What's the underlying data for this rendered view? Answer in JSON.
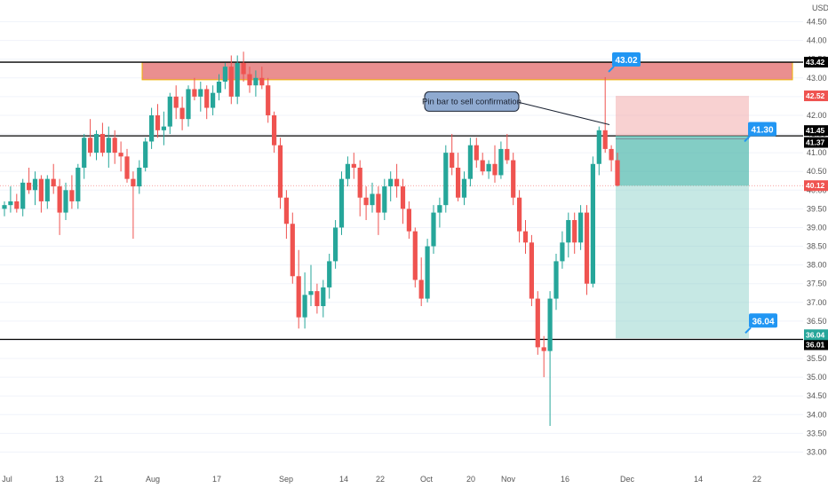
{
  "chart_data": {
    "type": "candlestick",
    "currency": "USD",
    "yaxis_ticks": [
      44.5,
      44.0,
      43.5,
      43.0,
      42.5,
      42.0,
      41.5,
      41.0,
      40.5,
      40.0,
      39.5,
      39.0,
      38.5,
      38.0,
      37.5,
      37.0,
      36.5,
      36.0,
      35.5,
      35.0,
      34.5,
      34.0,
      33.5,
      33.0
    ],
    "ylim": [
      32.7,
      44.9
    ],
    "xaxis_ticks": [
      "Jul",
      "13",
      "21",
      "Aug",
      "17",
      "Sep",
      "14",
      "22",
      "Oct",
      "20",
      "Nov",
      "16",
      "Dec",
      "14",
      "22"
    ],
    "levels": [
      {
        "name": "resistance-line",
        "value": 43.42,
        "label": "43.42"
      },
      {
        "name": "mid-line",
        "value": 41.45,
        "label": "41.45"
      },
      {
        "name": "support-line",
        "value": 36.01,
        "label": "36.01"
      }
    ],
    "price_tags": [
      {
        "label": "42.52",
        "value": 42.52,
        "color": "#ef5350"
      },
      {
        "label": "41.37",
        "value": 41.37,
        "color": "#000000"
      },
      {
        "label": "40.12",
        "value": 40.12,
        "color": "#ef5350"
      },
      {
        "label": "36.04",
        "value": 36.04,
        "color": "#26a69a"
      }
    ],
    "callouts": [
      {
        "label": "43.02",
        "value": 43.02
      },
      {
        "label": "41.30",
        "value": 41.3
      },
      {
        "label": "36.04",
        "value": 36.04
      }
    ],
    "annotation": "Pin bar to sell confirmation",
    "resistance_zone": {
      "top": 43.42,
      "bottom": 42.95,
      "color": "#e06666"
    },
    "position": {
      "entry": 41.45,
      "stop": 42.52,
      "target": 36.04
    },
    "candles": [
      [
        39.5,
        39.7,
        39.3,
        39.6
      ],
      [
        39.6,
        40.1,
        39.4,
        39.7
      ],
      [
        39.7,
        39.9,
        39.4,
        39.5
      ],
      [
        39.5,
        40.3,
        39.3,
        40.2
      ],
      [
        40.2,
        40.6,
        39.9,
        40.0
      ],
      [
        40.0,
        40.5,
        39.6,
        40.3
      ],
      [
        40.3,
        40.4,
        39.4,
        39.7
      ],
      [
        39.7,
        40.4,
        39.5,
        40.3
      ],
      [
        40.3,
        40.7,
        39.9,
        40.1
      ],
      [
        40.1,
        40.3,
        38.8,
        39.4
      ],
      [
        39.4,
        40.2,
        39.2,
        40.0
      ],
      [
        40.0,
        40.4,
        39.5,
        39.7
      ],
      [
        39.7,
        40.7,
        39.5,
        40.6
      ],
      [
        40.6,
        41.5,
        40.3,
        41.4
      ],
      [
        41.4,
        41.9,
        40.9,
        41.0
      ],
      [
        41.0,
        41.6,
        40.8,
        41.5
      ],
      [
        41.5,
        41.8,
        40.9,
        41.0
      ],
      [
        41.0,
        41.7,
        40.6,
        41.4
      ],
      [
        41.4,
        41.6,
        40.7,
        41.0
      ],
      [
        41.0,
        41.3,
        40.5,
        40.9
      ],
      [
        40.9,
        41.1,
        40.2,
        40.3
      ],
      [
        40.3,
        40.5,
        38.7,
        40.1
      ],
      [
        40.1,
        40.8,
        39.9,
        40.6
      ],
      [
        40.6,
        41.4,
        40.5,
        41.3
      ],
      [
        41.3,
        42.2,
        41.1,
        42.0
      ],
      [
        42.0,
        42.3,
        41.4,
        41.6
      ],
      [
        41.6,
        42.1,
        41.2,
        41.7
      ],
      [
        41.7,
        42.6,
        41.5,
        42.5
      ],
      [
        42.5,
        42.8,
        41.9,
        42.2
      ],
      [
        42.2,
        42.5,
        41.6,
        41.9
      ],
      [
        41.9,
        42.8,
        41.7,
        42.7
      ],
      [
        42.7,
        43.0,
        42.4,
        42.5
      ],
      [
        42.5,
        42.9,
        42.1,
        42.7
      ],
      [
        42.7,
        42.8,
        41.9,
        42.2
      ],
      [
        42.2,
        42.8,
        42.0,
        42.6
      ],
      [
        42.6,
        43.1,
        42.4,
        42.9
      ],
      [
        42.9,
        43.4,
        42.7,
        43.3
      ],
      [
        43.3,
        43.6,
        42.3,
        42.5
      ],
      [
        42.5,
        43.6,
        42.3,
        43.4
      ],
      [
        43.4,
        43.7,
        42.9,
        43.1
      ],
      [
        43.1,
        43.3,
        42.6,
        42.8
      ],
      [
        42.8,
        43.2,
        42.5,
        43.0
      ],
      [
        43.0,
        43.3,
        42.7,
        42.8
      ],
      [
        42.8,
        43.0,
        41.8,
        42.0
      ],
      [
        42.0,
        42.1,
        41.0,
        41.2
      ],
      [
        41.2,
        41.4,
        39.5,
        39.8
      ],
      [
        39.8,
        40.0,
        38.7,
        39.1
      ],
      [
        39.1,
        39.4,
        37.5,
        37.7
      ],
      [
        37.7,
        38.4,
        36.3,
        36.6
      ],
      [
        36.6,
        37.8,
        36.3,
        37.2
      ],
      [
        37.2,
        38.0,
        36.9,
        37.3
      ],
      [
        37.3,
        37.5,
        36.7,
        36.9
      ],
      [
        36.9,
        37.6,
        36.6,
        37.4
      ],
      [
        37.4,
        38.3,
        37.1,
        38.1
      ],
      [
        38.1,
        39.2,
        37.9,
        39.0
      ],
      [
        39.0,
        40.5,
        38.8,
        40.3
      ],
      [
        40.3,
        40.9,
        40.1,
        40.7
      ],
      [
        40.7,
        41.0,
        40.3,
        40.6
      ],
      [
        40.6,
        40.8,
        39.3,
        39.8
      ],
      [
        39.8,
        40.1,
        39.2,
        39.6
      ],
      [
        39.6,
        40.2,
        39.4,
        39.9
      ],
      [
        39.9,
        40.1,
        38.8,
        39.4
      ],
      [
        39.4,
        40.3,
        39.2,
        40.1
      ],
      [
        40.1,
        40.5,
        39.7,
        40.3
      ],
      [
        40.3,
        40.7,
        39.8,
        40.1
      ],
      [
        40.1,
        40.3,
        39.1,
        39.5
      ],
      [
        39.5,
        39.7,
        38.7,
        38.9
      ],
      [
        38.9,
        39.0,
        37.4,
        37.6
      ],
      [
        37.6,
        38.2,
        36.9,
        37.1
      ],
      [
        37.1,
        38.7,
        37.0,
        38.5
      ],
      [
        38.5,
        39.6,
        38.3,
        39.4
      ],
      [
        39.4,
        39.8,
        39.0,
        39.6
      ],
      [
        39.6,
        41.2,
        39.4,
        41.0
      ],
      [
        41.0,
        41.5,
        40.4,
        40.6
      ],
      [
        40.6,
        41.0,
        39.7,
        39.8
      ],
      [
        39.8,
        40.5,
        39.6,
        40.3
      ],
      [
        40.3,
        41.4,
        40.1,
        41.2
      ],
      [
        41.2,
        41.4,
        40.6,
        40.8
      ],
      [
        40.8,
        41.0,
        40.4,
        40.5
      ],
      [
        40.5,
        40.8,
        40.3,
        40.7
      ],
      [
        40.7,
        41.2,
        40.2,
        40.4
      ],
      [
        40.4,
        41.3,
        40.3,
        41.1
      ],
      [
        41.1,
        41.5,
        40.7,
        40.8
      ],
      [
        40.8,
        41.0,
        39.6,
        39.8
      ],
      [
        39.8,
        40.0,
        38.6,
        38.9
      ],
      [
        38.9,
        39.2,
        38.3,
        38.6
      ],
      [
        38.6,
        38.8,
        36.9,
        37.1
      ],
      [
        37.1,
        37.3,
        35.6,
        35.8
      ],
      [
        35.8,
        36.1,
        35.0,
        35.7
      ],
      [
        35.7,
        37.3,
        33.7,
        37.1
      ],
      [
        37.1,
        38.3,
        36.8,
        38.1
      ],
      [
        38.1,
        38.9,
        37.9,
        38.6
      ],
      [
        38.6,
        39.4,
        38.2,
        39.2
      ],
      [
        39.2,
        39.4,
        38.3,
        38.6
      ],
      [
        38.6,
        39.6,
        38.4,
        39.4
      ],
      [
        39.4,
        39.6,
        37.2,
        37.5
      ],
      [
        37.5,
        40.9,
        37.4,
        40.7
      ],
      [
        40.7,
        41.7,
        40.4,
        41.6
      ],
      [
        41.6,
        43.02,
        41.0,
        41.1
      ],
      [
        41.1,
        41.2,
        40.5,
        40.8
      ],
      [
        40.8,
        41.0,
        40.1,
        40.12
      ]
    ]
  }
}
